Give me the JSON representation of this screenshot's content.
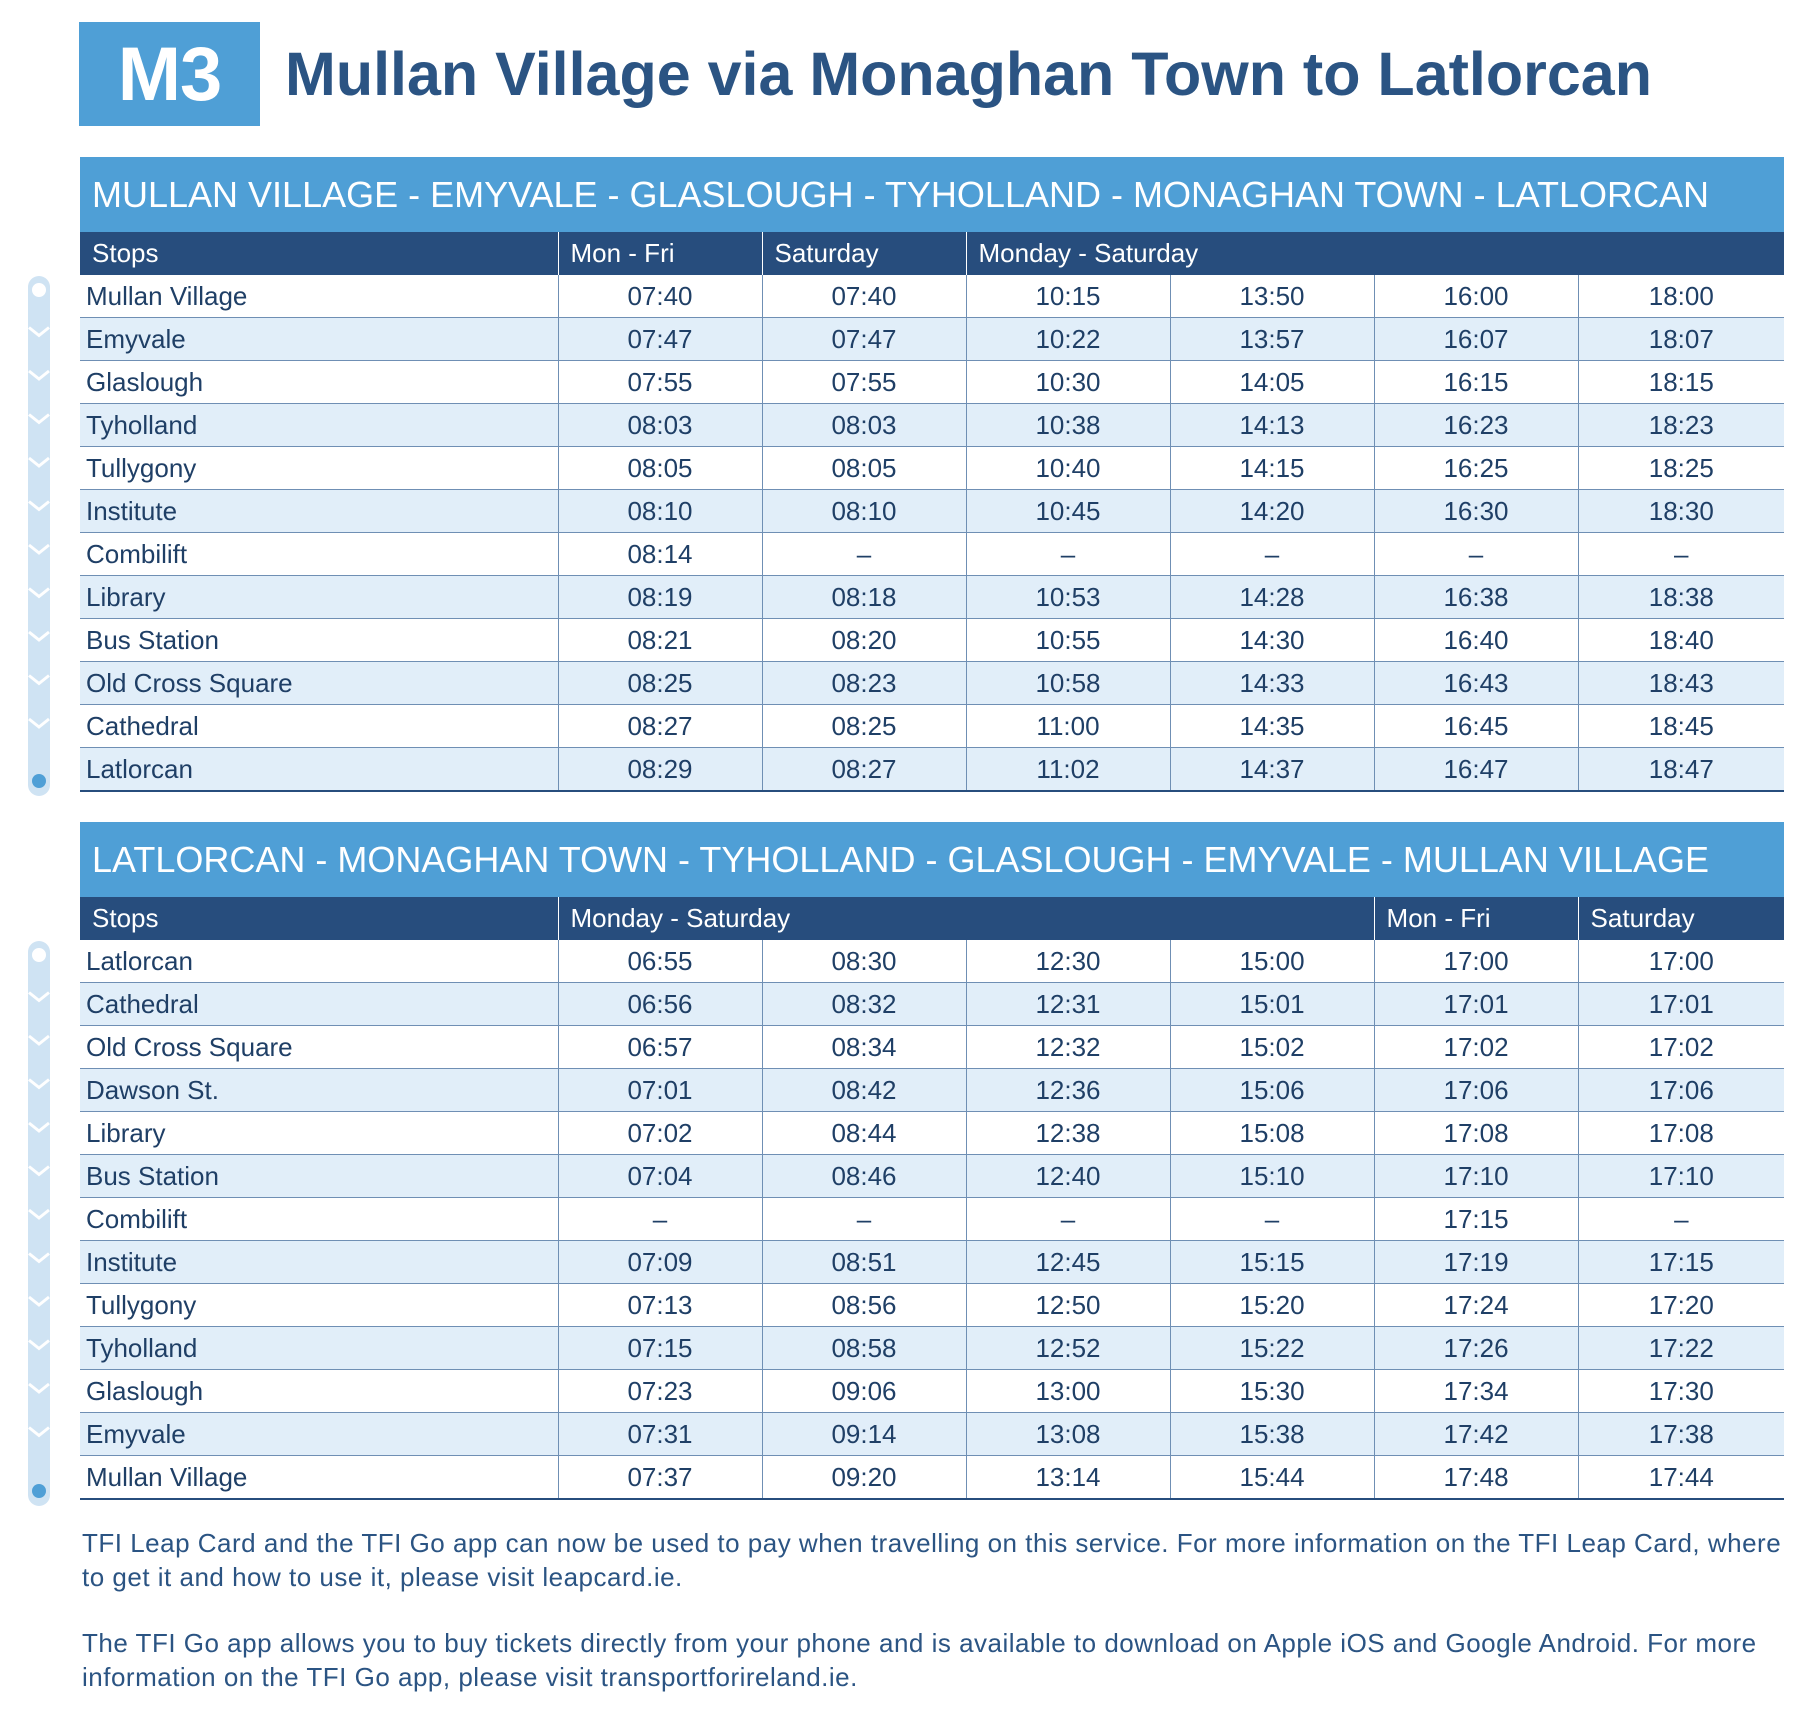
{
  "route": {
    "code": "M3",
    "title": "Mullan Village via Monaghan Town to Latlorcan"
  },
  "timetables": [
    {
      "heading": "MULLAN VILLAGE - EMYVALE - GLASLOUGH - TYHOLLAND - MONAGHAN TOWN - LATLORCAN",
      "columns": [
        {
          "label": "Stops",
          "span": 1
        },
        {
          "label": "Mon - Fri",
          "span": 1
        },
        {
          "label": "Saturday",
          "span": 1
        },
        {
          "label": "Monday - Saturday",
          "span": 4
        }
      ],
      "rows": [
        {
          "stop": "Mullan Village",
          "times": [
            "07:40",
            "07:40",
            "10:15",
            "13:50",
            "16:00",
            "18:00"
          ]
        },
        {
          "stop": "Emyvale",
          "times": [
            "07:47",
            "07:47",
            "10:22",
            "13:57",
            "16:07",
            "18:07"
          ]
        },
        {
          "stop": "Glaslough",
          "times": [
            "07:55",
            "07:55",
            "10:30",
            "14:05",
            "16:15",
            "18:15"
          ]
        },
        {
          "stop": "Tyholland",
          "times": [
            "08:03",
            "08:03",
            "10:38",
            "14:13",
            "16:23",
            "18:23"
          ]
        },
        {
          "stop": "Tullygony",
          "times": [
            "08:05",
            "08:05",
            "10:40",
            "14:15",
            "16:25",
            "18:25"
          ]
        },
        {
          "stop": "Institute",
          "times": [
            "08:10",
            "08:10",
            "10:45",
            "14:20",
            "16:30",
            "18:30"
          ]
        },
        {
          "stop": "Combilift",
          "times": [
            "08:14",
            "–",
            "–",
            "–",
            "–",
            "–"
          ]
        },
        {
          "stop": "Library",
          "times": [
            "08:19",
            "08:18",
            "10:53",
            "14:28",
            "16:38",
            "18:38"
          ]
        },
        {
          "stop": "Bus Station",
          "times": [
            "08:21",
            "08:20",
            "10:55",
            "14:30",
            "16:40",
            "18:40"
          ]
        },
        {
          "stop": "Old Cross Square",
          "times": [
            "08:25",
            "08:23",
            "10:58",
            "14:33",
            "16:43",
            "18:43"
          ]
        },
        {
          "stop": "Cathedral",
          "times": [
            "08:27",
            "08:25",
            "11:00",
            "14:35",
            "16:45",
            "18:45"
          ]
        },
        {
          "stop": "Latlorcan",
          "times": [
            "08:29",
            "08:27",
            "11:02",
            "14:37",
            "16:47",
            "18:47"
          ]
        }
      ]
    },
    {
      "heading": "LATLORCAN - MONAGHAN TOWN - TYHOLLAND - GLASLOUGH - EMYVALE - MULLAN VILLAGE",
      "columns": [
        {
          "label": "Stops",
          "span": 1
        },
        {
          "label": "Monday - Saturday",
          "span": 4
        },
        {
          "label": "Mon - Fri",
          "span": 1
        },
        {
          "label": "Saturday",
          "span": 1
        }
      ],
      "rows": [
        {
          "stop": "Latlorcan",
          "times": [
            "06:55",
            "08:30",
            "12:30",
            "15:00",
            "17:00",
            "17:00"
          ]
        },
        {
          "stop": "Cathedral",
          "times": [
            "06:56",
            "08:32",
            "12:31",
            "15:01",
            "17:01",
            "17:01"
          ]
        },
        {
          "stop": "Old Cross Square",
          "times": [
            "06:57",
            "08:34",
            "12:32",
            "15:02",
            "17:02",
            "17:02"
          ]
        },
        {
          "stop": "Dawson St.",
          "times": [
            "07:01",
            "08:42",
            "12:36",
            "15:06",
            "17:06",
            "17:06"
          ]
        },
        {
          "stop": "Library",
          "times": [
            "07:02",
            "08:44",
            "12:38",
            "15:08",
            "17:08",
            "17:08"
          ]
        },
        {
          "stop": "Bus Station",
          "times": [
            "07:04",
            "08:46",
            "12:40",
            "15:10",
            "17:10",
            "17:10"
          ]
        },
        {
          "stop": "Combilift",
          "times": [
            "–",
            "–",
            "–",
            "–",
            "17:15",
            "–"
          ]
        },
        {
          "stop": "Institute",
          "times": [
            "07:09",
            "08:51",
            "12:45",
            "15:15",
            "17:19",
            "17:15"
          ]
        },
        {
          "stop": "Tullygony",
          "times": [
            "07:13",
            "08:56",
            "12:50",
            "15:20",
            "17:24",
            "17:20"
          ]
        },
        {
          "stop": "Tyholland",
          "times": [
            "07:15",
            "08:58",
            "12:52",
            "15:22",
            "17:26",
            "17:22"
          ]
        },
        {
          "stop": "Glaslough",
          "times": [
            "07:23",
            "09:06",
            "13:00",
            "15:30",
            "17:34",
            "17:30"
          ]
        },
        {
          "stop": "Emyvale",
          "times": [
            "07:31",
            "09:14",
            "13:08",
            "15:38",
            "17:42",
            "17:38"
          ]
        },
        {
          "stop": "Mullan Village",
          "times": [
            "07:37",
            "09:20",
            "13:14",
            "15:44",
            "17:48",
            "17:44"
          ]
        }
      ]
    }
  ],
  "footer": {
    "leap_card": "TFI Leap Card and the TFI Go app can now be used to pay when travelling on this service. For more information on the TFI Leap Card, where to get it and how to use it, please visit leapcard.ie.",
    "tfi_go": "The TFI Go app allows you to buy tickets directly from your phone and is available to download on Apple iOS and Google Android. For more information on the TFI Go app, please visit transportforireland.ie."
  },
  "colors": {
    "accent_blue": "#4f9fd6",
    "header_navy": "#274d7d",
    "row_alt": "#e1eef9",
    "rail_light": "#cfe3f3"
  }
}
